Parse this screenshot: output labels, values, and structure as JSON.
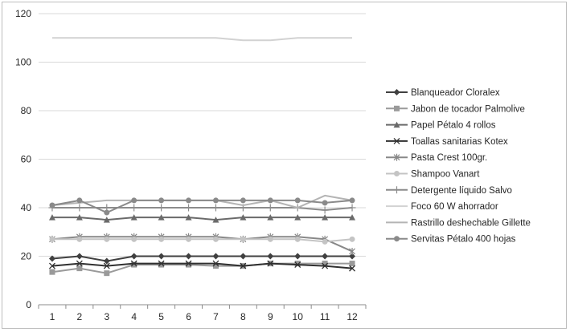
{
  "chart_data": {
    "type": "line",
    "x": [
      "1",
      "2",
      "3",
      "4",
      "5",
      "6",
      "7",
      "8",
      "9",
      "10",
      "11",
      "12"
    ],
    "ylim": [
      0,
      120
    ],
    "yticks": [
      "0",
      "20",
      "40",
      "60",
      "80",
      "100",
      "120"
    ],
    "grid": "horizontal",
    "legend_position": "right",
    "series": [
      {
        "name": "Blanqueador Cloralex",
        "marker": "diamond",
        "color": "#404040",
        "values": [
          19,
          20,
          18,
          20,
          20,
          20,
          20,
          20,
          20,
          20,
          20,
          20
        ]
      },
      {
        "name": "Jabon de tocador Palmolive",
        "marker": "square",
        "color": "#9a9a9a",
        "values": [
          13.5,
          15,
          13,
          16.5,
          16.5,
          16.5,
          16,
          16,
          17,
          17,
          17,
          17
        ]
      },
      {
        "name": "Papel Pétalo 4 rollos",
        "marker": "triangle",
        "color": "#6a6a6a",
        "values": [
          36,
          36,
          35,
          36,
          36,
          36,
          35,
          36,
          36,
          36,
          36,
          36
        ]
      },
      {
        "name": "Toallas sanitarias Kotex",
        "marker": "x",
        "color": "#303030",
        "values": [
          16,
          17,
          16,
          17,
          17,
          17,
          17,
          16,
          17,
          16.5,
          16,
          15
        ]
      },
      {
        "name": "Pasta Crest 100gr.",
        "marker": "star",
        "color": "#888888",
        "values": [
          27,
          28,
          28,
          28,
          28,
          28,
          28,
          27,
          28,
          28,
          27,
          22
        ]
      },
      {
        "name": "Shampoo Vanart",
        "marker": "circle",
        "color": "#c4c4c4",
        "values": [
          27,
          27,
          27,
          27,
          27,
          27,
          27,
          27,
          27,
          27,
          26,
          27
        ]
      },
      {
        "name": "Detergente líquido Salvo",
        "marker": "plus",
        "color": "#8c8c8c",
        "values": [
          40,
          40,
          40,
          40,
          40,
          40,
          40,
          40,
          40,
          40,
          39,
          40
        ]
      },
      {
        "name": "Foco 60 W ahorrador",
        "marker": "none",
        "color": "#d2d2d2",
        "values": [
          110,
          110,
          110,
          110,
          110,
          110,
          110,
          109,
          109,
          110,
          110,
          110
        ]
      },
      {
        "name": "Rastrillo deshechable Gillette",
        "marker": "none",
        "color": "#b4b4b4",
        "values": [
          41,
          42,
          43,
          43,
          43,
          43,
          43,
          41,
          43,
          40,
          45,
          43
        ]
      },
      {
        "name": "Servitas Pétalo 400 hojas",
        "marker": "circle",
        "color": "#8a8a8a",
        "values": [
          41,
          43,
          38,
          43,
          43,
          43,
          43,
          43,
          43,
          43,
          42,
          43
        ]
      }
    ]
  }
}
